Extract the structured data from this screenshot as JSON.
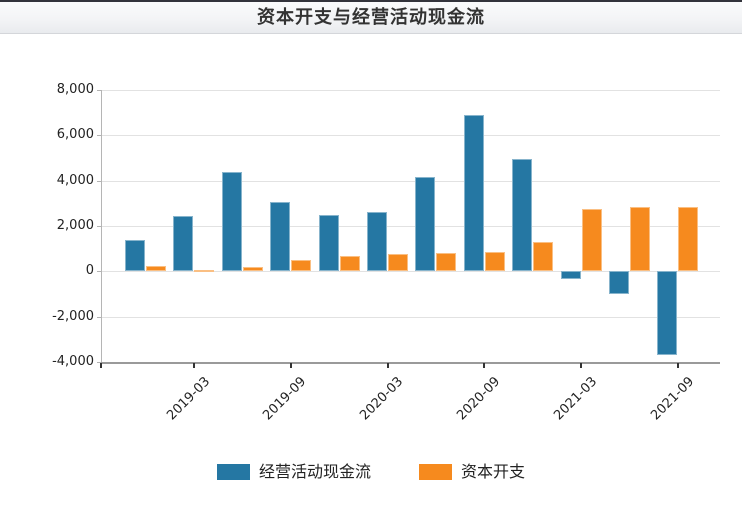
{
  "header": {
    "title": "资本开支与经营活动现金流"
  },
  "chart_data": {
    "type": "bar",
    "title": "资本开支与经营活动现金流",
    "categories": [
      "2018-12",
      "2019-03",
      "2019-06",
      "2019-09",
      "2019-12",
      "2020-03",
      "2020-06",
      "2020-09",
      "2020-12",
      "2021-03",
      "2021-06",
      "2021-09"
    ],
    "x_tick_labels": [
      "2019-03",
      "2019-09",
      "2020-03",
      "2020-09",
      "2021-03",
      "2021-09"
    ],
    "series": [
      {
        "name": "经营活动现金流",
        "color": "#2577a3",
        "values": [
          1400,
          2450,
          4400,
          3050,
          2500,
          2600,
          4150,
          6900,
          4950,
          -350,
          -1000,
          -3700
        ]
      },
      {
        "name": "资本开支",
        "color": "#f68a1e",
        "values": [
          250,
          70,
          190,
          520,
          670,
          780,
          800,
          850,
          1300,
          2760,
          2860,
          2860
        ]
      }
    ],
    "ylim": [
      -4000,
      8000
    ],
    "y_ticks": [
      8000,
      6000,
      4000,
      2000,
      0,
      -2000,
      -4000
    ],
    "y_tick_labels": [
      "8,000",
      "6,000",
      "4,000",
      "2,000",
      "0",
      "-2,000",
      "-4,000"
    ],
    "grid": true,
    "legend_position": "bottom"
  },
  "colors": {
    "operating_cash_flow": "#2577a3",
    "capex": "#f68a1e",
    "grid": "#e2e2e2",
    "axis": "#9a9a9a",
    "tick": "#333333",
    "label_text": "#222222",
    "title_text": "#333333"
  }
}
